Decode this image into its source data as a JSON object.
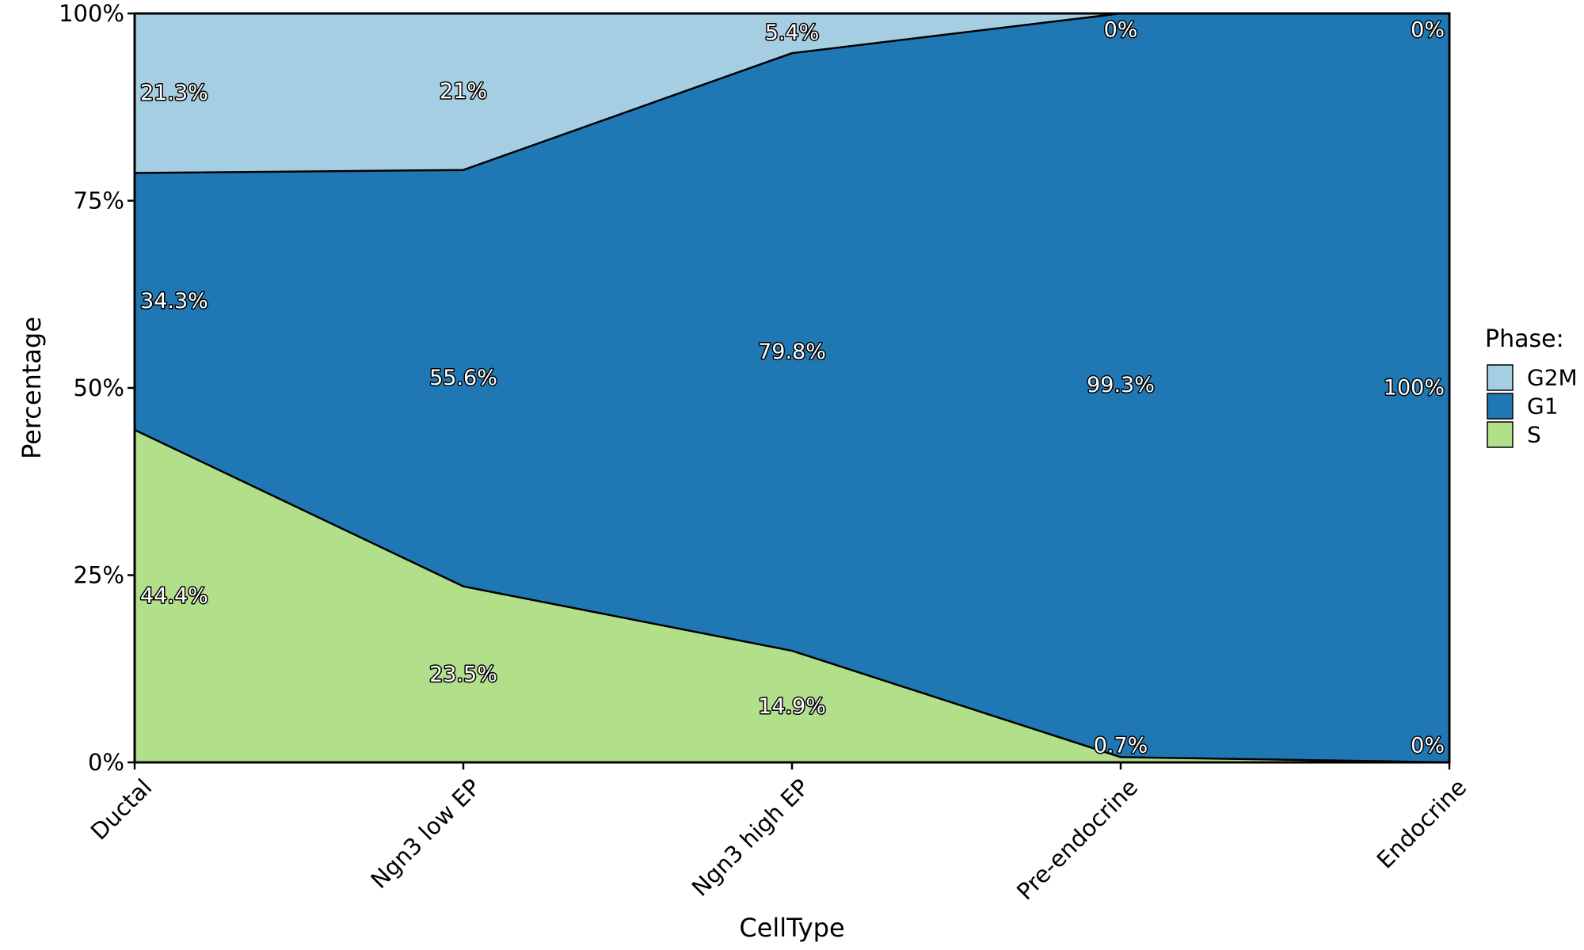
{
  "chart_data": {
    "type": "area",
    "stacked": "percent",
    "xlabel": "CellType",
    "ylabel": "Percentage",
    "categories": [
      "Ductal",
      "Ngn3 low EP",
      "Ngn3 high EP",
      "Pre-endocrine",
      "Endocrine"
    ],
    "ylim": [
      0,
      100
    ],
    "yticks": [
      0,
      25,
      50,
      75,
      100
    ],
    "ytick_labels": [
      "0%",
      "25%",
      "50%",
      "75%",
      "100%"
    ],
    "grid": false,
    "legend": {
      "title": "Phase:",
      "position": "right"
    },
    "series": [
      {
        "name": "G2M",
        "color": "#a6cee3",
        "values": [
          21.3,
          21,
          5.4,
          0,
          0
        ],
        "labels": [
          "21.3%",
          "21%",
          "5.4%",
          "0%",
          "0%"
        ]
      },
      {
        "name": "G1",
        "color": "#1f78b4",
        "values": [
          34.3,
          55.6,
          79.8,
          99.3,
          100
        ],
        "labels": [
          "34.3%",
          "55.6%",
          "79.8%",
          "99.3%",
          "100%"
        ]
      },
      {
        "name": "S",
        "color": "#b2df8a",
        "values": [
          44.4,
          23.5,
          14.9,
          0.7,
          0
        ],
        "labels": [
          "44.4%",
          "23.5%",
          "14.9%",
          "0.7%",
          "0%"
        ]
      }
    ]
  }
}
